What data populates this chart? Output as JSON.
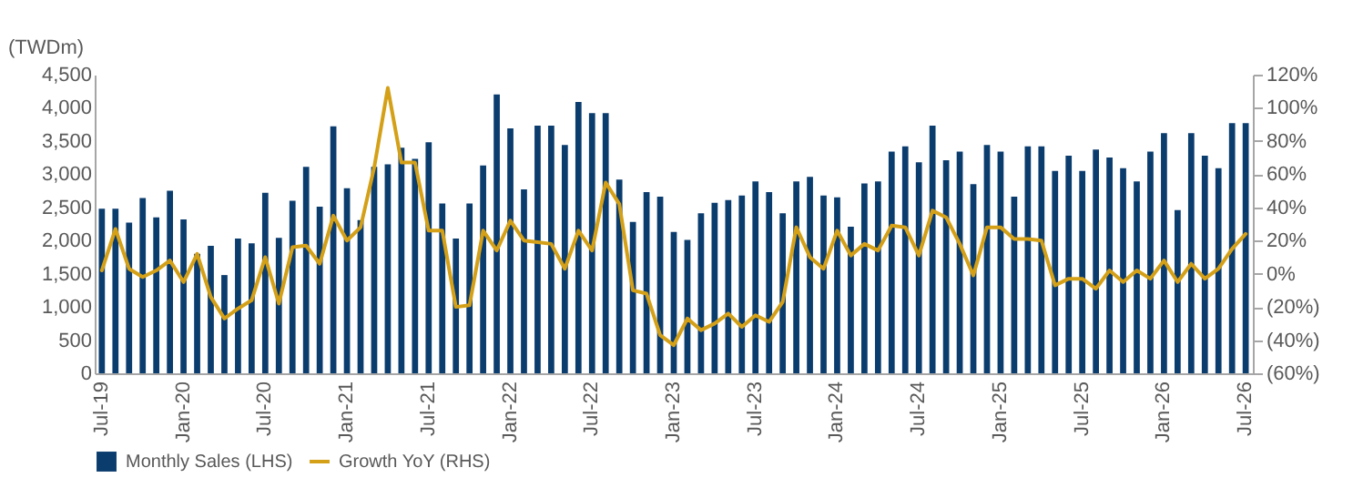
{
  "chart_data": {
    "type": "bar",
    "ylabel": "(TWDm)",
    "legend": "bottom",
    "grid": false,
    "categories": [
      "Jul-19",
      null,
      null,
      null,
      null,
      null,
      "Jan-20",
      null,
      null,
      null,
      null,
      null,
      "Jul-20",
      null,
      null,
      null,
      null,
      null,
      "Jan-21",
      null,
      null,
      null,
      null,
      null,
      "Jul-21",
      null,
      null,
      null,
      null,
      null,
      "Jan-22",
      null,
      null,
      null,
      null,
      null,
      "Jul-22",
      null,
      null,
      null,
      null,
      null,
      "Jan-23",
      null,
      null,
      null,
      null,
      null,
      "Jul-23",
      null,
      null,
      null,
      null,
      null,
      "Jan-24",
      null,
      null,
      null,
      null,
      null,
      "Jul-24",
      null,
      null,
      null,
      null,
      null,
      "Jan-25",
      null,
      null,
      null,
      null,
      null,
      "Jul-25",
      null,
      null,
      null,
      null,
      null,
      "Jan-26",
      null,
      null,
      null,
      null,
      null,
      "Jul-26"
    ],
    "series": [
      {
        "name": "Monthly Sales (LHS)",
        "color": "#0b3c6e",
        "values": [
          2480,
          2480,
          2270,
          2640,
          2350,
          2750,
          2320,
          1800,
          1920,
          1480,
          2030,
          1960,
          2720,
          2040,
          2600,
          3110,
          2510,
          3720,
          2790,
          2310,
          3110,
          3150,
          3400,
          3230,
          3480,
          2560,
          2030,
          2560,
          3130,
          4200,
          3690,
          2770,
          3730,
          3730,
          3440,
          4090,
          3920,
          3920,
          2920,
          2280,
          2730,
          2660,
          2130,
          2010,
          2410,
          2570,
          2610,
          2680,
          2890,
          2730,
          2410,
          2890,
          2960,
          2680,
          2650,
          2210,
          2860,
          2890,
          3340,
          3420,
          3180,
          3730,
          3210,
          3340,
          2850,
          3440,
          3340,
          2660,
          3420,
          3420,
          3050,
          3280,
          3050,
          3370,
          3250,
          3090,
          2890,
          3340,
          3620,
          2460,
          3620,
          3280,
          3090,
          3770,
          3770
        ]
      },
      {
        "name": "Growth YoY (RHS)",
        "type": "line",
        "axis": "y2",
        "color": "#d4a017",
        "values": [
          2,
          27,
          3,
          -2,
          2,
          8,
          -5,
          12,
          -14,
          -27,
          -21,
          -16,
          10,
          -18,
          16,
          17,
          6,
          35,
          20,
          28,
          64,
          112,
          67,
          67,
          26,
          26,
          -20,
          -19,
          26,
          14,
          32,
          20,
          19,
          18,
          3,
          26,
          14,
          55,
          42,
          -10,
          -12,
          -37,
          -43,
          -27,
          -34,
          -30,
          -24,
          -32,
          -25,
          -29,
          -17,
          28,
          10,
          3,
          26,
          11,
          18,
          14,
          29,
          28,
          11,
          38,
          34,
          18,
          -1,
          28,
          28,
          21,
          21,
          20,
          -7,
          -3,
          -3,
          -9,
          2,
          -5,
          2,
          -3,
          8,
          -5,
          6,
          -3,
          3,
          15,
          24
        ]
      }
    ],
    "ylim": [
      0,
      4500
    ],
    "yticks": [
      {
        "value": 0,
        "label": "0"
      },
      {
        "value": 500,
        "label": "500"
      },
      {
        "value": 1000,
        "label": "1,000"
      },
      {
        "value": 1500,
        "label": "1,500"
      },
      {
        "value": 2000,
        "label": "2,000"
      },
      {
        "value": 2500,
        "label": "2,500"
      },
      {
        "value": 3000,
        "label": "3,000"
      },
      {
        "value": 3500,
        "label": "3,500"
      },
      {
        "value": 4000,
        "label": "4,000"
      },
      {
        "value": 4500,
        "label": "4,500"
      }
    ],
    "y2lim": [
      -60,
      120
    ],
    "y2ticks": [
      {
        "value": -60,
        "label": "(60%)"
      },
      {
        "value": -40,
        "label": "(40%)"
      },
      {
        "value": -20,
        "label": "(20%)"
      },
      {
        "value": 0,
        "label": "0%"
      },
      {
        "value": 20,
        "label": "20%"
      },
      {
        "value": 40,
        "label": "40%"
      },
      {
        "value": 60,
        "label": "60%"
      },
      {
        "value": 80,
        "label": "80%"
      },
      {
        "value": 100,
        "label": "100%"
      },
      {
        "value": 120,
        "label": "120%"
      }
    ]
  }
}
